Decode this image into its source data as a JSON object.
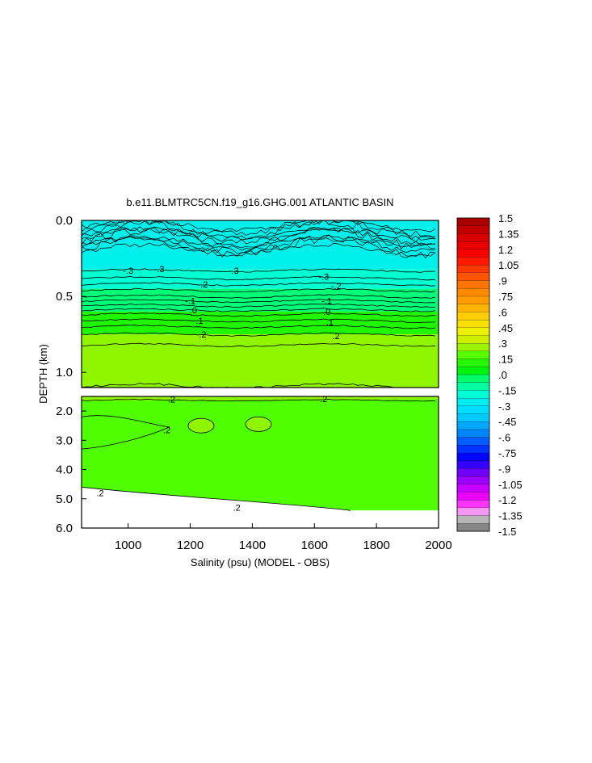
{
  "chart_data": {
    "type": "heatmap",
    "title": "b.e11.BLMTRC5CN.f19_g16.GHG.001 ATLANTIC BASIN",
    "xlabel": "Salinity (psu) (MODEL - OBS)",
    "ylabel": "DEPTH (km)",
    "xlim": [
      850,
      2000
    ],
    "xticks": [
      "1000",
      "1200",
      "1400",
      "1600",
      "1800",
      "2000"
    ],
    "upper_panel": {
      "ylim": [
        0.0,
        1.1
      ],
      "yticks": [
        "0.0",
        "0.5",
        "1.0"
      ]
    },
    "lower_panel": {
      "ylim": [
        1.5,
        6.0
      ],
      "yticks": [
        "2.0",
        "3.0",
        "4.0",
        "5.0",
        "6.0"
      ]
    },
    "colorbar": {
      "range": [
        -1.5,
        1.5
      ],
      "step": 0.075,
      "labels": [
        "1.5",
        "1.35",
        "1.2",
        "1.05",
        ".9",
        ".75",
        ".6",
        ".45",
        ".3",
        ".15",
        ".0",
        "-.15",
        "-.3",
        "-.45",
        "-.6",
        "-.75",
        "-.9",
        "-1.05",
        "-1.2",
        "-1.35",
        "-1.5"
      ]
    },
    "bands": [
      {
        "panel": "upper",
        "value": -0.25,
        "depth": [
          0.0,
          0.32
        ]
      },
      {
        "panel": "upper",
        "value": -0.18,
        "depth": [
          0.32,
          0.45
        ]
      },
      {
        "panel": "upper",
        "value": -0.05,
        "depth": [
          0.45,
          0.6
        ]
      },
      {
        "panel": "upper",
        "value": 0.1,
        "depth": [
          0.6,
          0.75
        ]
      },
      {
        "panel": "upper",
        "value": 0.25,
        "depth": [
          0.75,
          1.1
        ]
      },
      {
        "panel": "lower",
        "value": 0.25,
        "depth": [
          1.5,
          3.3
        ]
      },
      {
        "panel": "lower",
        "value": 0.18,
        "depth": [
          1.65,
          5.4
        ]
      }
    ],
    "contour_labels": [
      {
        "text": "-.3",
        "x": 1000,
        "depth": 0.33
      },
      {
        "text": "-.3",
        "x": 1100,
        "depth": 0.32
      },
      {
        "text": "-.3",
        "x": 1340,
        "depth": 0.33
      },
      {
        "text": "-.3",
        "x": 1630,
        "depth": 0.37
      },
      {
        "text": "-.2",
        "x": 1240,
        "depth": 0.42
      },
      {
        "text": "-.2",
        "x": 1670,
        "depth": 0.43
      },
      {
        "text": "-.1",
        "x": 1200,
        "depth": 0.53
      },
      {
        "text": "-.1",
        "x": 1640,
        "depth": 0.53
      },
      {
        "text": ".0",
        "x": 1210,
        "depth": 0.59
      },
      {
        "text": ".0",
        "x": 1640,
        "depth": 0.6
      },
      {
        "text": ".1",
        "x": 1230,
        "depth": 0.66
      },
      {
        "text": ".1",
        "x": 1650,
        "depth": 0.67
      },
      {
        "text": ".2",
        "x": 1240,
        "depth": 0.75
      },
      {
        "text": ".2",
        "x": 1670,
        "depth": 0.76
      },
      {
        "text": ".2",
        "x": 1140,
        "depth": 1.6
      },
      {
        "text": ".2",
        "x": 1630,
        "depth": 1.58
      },
      {
        "text": ".2",
        "x": 1125,
        "depth": 2.65
      },
      {
        "text": ".2",
        "x": 910,
        "depth": 4.8
      },
      {
        "text": ".2",
        "x": 1350,
        "depth": 5.3
      }
    ]
  }
}
